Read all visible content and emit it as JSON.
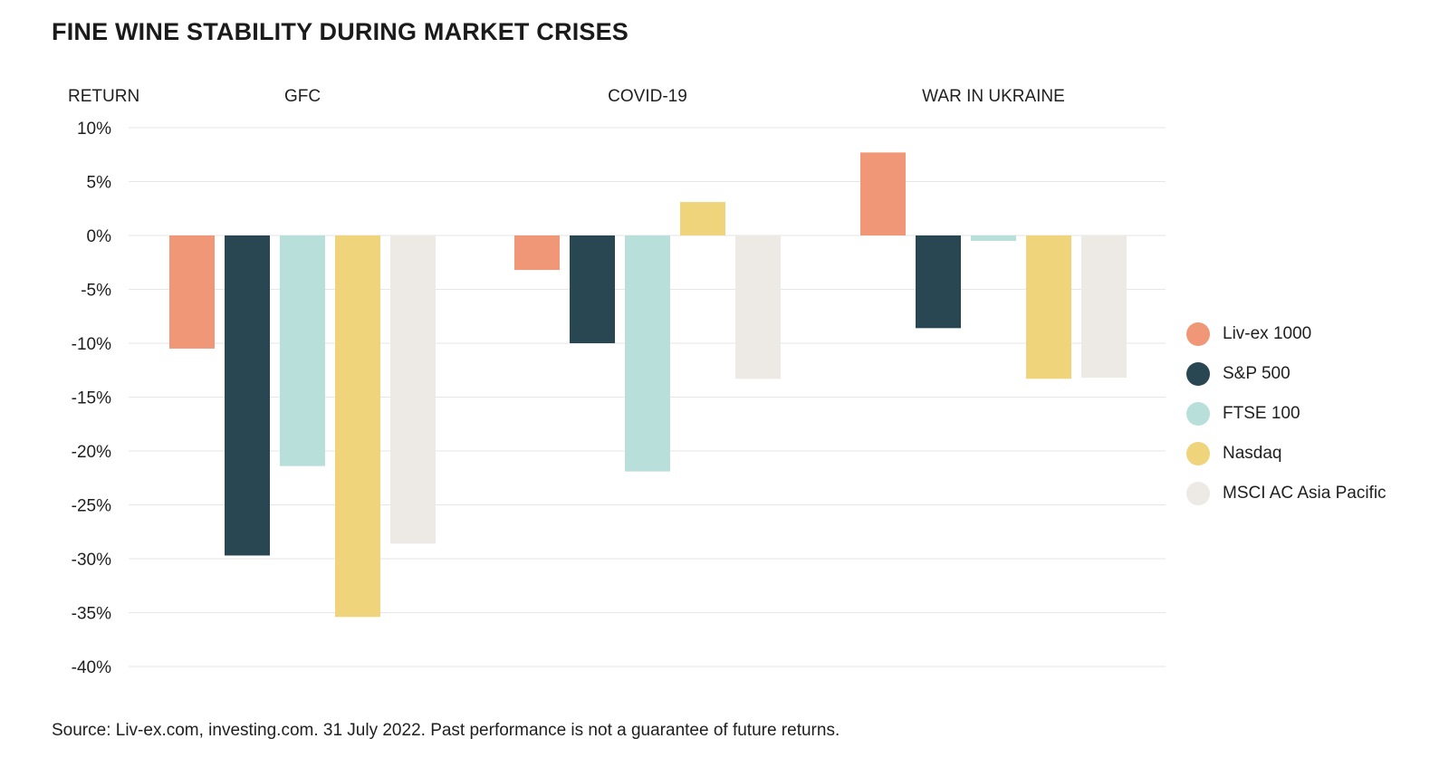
{
  "chart_data": {
    "type": "bar",
    "title": "FINE WINE STABILITY DURING MARKET CRISES",
    "ylabel": "RETURN",
    "xlabel": "",
    "categories": [
      "GFC",
      "COVID-19",
      "WAR IN UKRAINE"
    ],
    "ylim": [
      -40,
      10
    ],
    "yticks": [
      10,
      5,
      0,
      -5,
      -10,
      -15,
      -20,
      -25,
      -30,
      -35,
      -40
    ],
    "ytick_labels": [
      "10%",
      "5%",
      "0%",
      "-5%",
      "-10%",
      "-15%",
      "-20%",
      "-25%",
      "-30%",
      "-35%",
      "-40%"
    ],
    "grid": true,
    "legend_position": "right",
    "series": [
      {
        "name": "Liv-ex 1000",
        "color": "#F09777",
        "values": [
          -10.5,
          -3.2,
          7.7
        ]
      },
      {
        "name": "S&P 500",
        "color": "#284753",
        "values": [
          -29.7,
          -10.0,
          -8.6
        ]
      },
      {
        "name": "FTSE 100",
        "color": "#B8DFD9",
        "values": [
          -21.4,
          -21.9,
          -0.5
        ]
      },
      {
        "name": "Nasdaq",
        "color": "#EFD47B",
        "values": [
          -35.4,
          3.1,
          -13.3
        ]
      },
      {
        "name": "MSCI AC Asia Pacific",
        "color": "#EDE9E5",
        "values": [
          -28.6,
          -13.3,
          -13.2
        ]
      }
    ]
  },
  "source_note": "Source: Liv-ex.com, investing.com. 31 July 2022. Past performance is not a guarantee of future returns."
}
